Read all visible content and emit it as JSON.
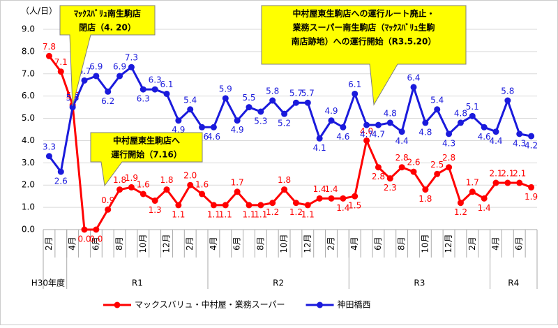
{
  "chart_data": {
    "type": "line",
    "y_unit_label": "（人/日）",
    "ylim": [
      0,
      9
    ],
    "yticks": [
      {
        "value": 0,
        "label": "0.0"
      },
      {
        "value": 1,
        "label": "1.0"
      },
      {
        "value": 2,
        "label": "2.0"
      },
      {
        "value": 3,
        "label": "3.0"
      },
      {
        "value": 4,
        "label": "4.0"
      },
      {
        "value": 5,
        "label": "5.0"
      },
      {
        "value": 6,
        "label": "6.0"
      },
      {
        "value": 7,
        "label": "7.0"
      },
      {
        "value": 8,
        "label": "8.0"
      },
      {
        "value": 9,
        "label": "9.0"
      }
    ],
    "grid": true,
    "legend": "bottom",
    "groups": [
      {
        "label": "H30年度",
        "categories": [
          "2月",
          null
        ]
      },
      {
        "label": "R1",
        "categories": [
          "4月",
          null,
          "6月",
          null,
          "8月",
          null,
          "10月",
          null,
          "12月",
          null,
          "2月",
          null
        ]
      },
      {
        "label": "R2",
        "categories": [
          "4月",
          null,
          "6月",
          null,
          "8月",
          null,
          "10月",
          null,
          "12月",
          null,
          "2月",
          null
        ]
      },
      {
        "label": "R3",
        "categories": [
          "4月",
          null,
          "6月",
          null,
          "8月",
          null,
          "10月",
          null,
          "12月",
          null,
          "2月",
          null
        ]
      },
      {
        "label": "R4",
        "categories": [
          "4月",
          null,
          "6月",
          null
        ]
      }
    ],
    "series": [
      {
        "name": "マックスバリュ・中村屋・業務スーパー",
        "color": "#ff0000",
        "values": [
          7.8,
          7.1,
          5.6,
          0,
          0,
          0.9,
          1.8,
          1.9,
          1.6,
          1.3,
          1.8,
          1.1,
          2,
          1.6,
          1.1,
          1.1,
          1.7,
          1.1,
          1.1,
          1.2,
          1.8,
          1.2,
          1.1,
          1.4,
          1.4,
          1.4,
          1.5,
          4,
          2.8,
          2.3,
          2.8,
          2.6,
          1.8,
          2.5,
          2.8,
          1.2,
          1.7,
          1.4,
          2.1,
          2.1,
          2.1,
          1.9
        ],
        "value_labels": [
          "7.8",
          "7.1",
          "5.6",
          "0.0",
          "0.0",
          "0.9",
          "1.8",
          "1.9",
          "1.6",
          "1.3",
          "1.8",
          "1.1",
          "2.0",
          "1.6",
          "1.1",
          "1.1",
          "1.7",
          "1.1",
          "1.1",
          "1.2",
          "1.8",
          "1.2",
          "1.1",
          "1.4",
          "1.4",
          "1.4",
          "1.5",
          "4.0",
          "2.8",
          "2.3",
          "2.8",
          "2.6",
          "1.8",
          "2.5",
          "2.8",
          "1.2",
          "1.7",
          "1.4",
          "2.1",
          "2.1",
          "2.1",
          "1.9"
        ]
      },
      {
        "name": "神田橋西",
        "color": "#1a1adc",
        "values": [
          3.3,
          2.6,
          5.5,
          6.7,
          6.9,
          6.2,
          6.9,
          7.3,
          6.3,
          6.3,
          6.1,
          4.9,
          5.4,
          4.6,
          4.6,
          5.9,
          4.9,
          5.5,
          5.3,
          5.8,
          5.2,
          5.7,
          5.7,
          4.1,
          4.9,
          4.6,
          6.1,
          4.7,
          4.7,
          4.8,
          4.4,
          6.4,
          4.8,
          5.4,
          4.3,
          4.8,
          5.1,
          4.6,
          4.4,
          5.8,
          4.3,
          4.2
        ]
      }
    ],
    "annotations": [
      {
        "lines": [
          "ﾏｯｸｽﾊﾞﾘｭ南生駒店",
          "閉店（4. 20）"
        ]
      },
      {
        "lines": [
          "中村屋東生駒店へ",
          "運行開始（7.16）"
        ]
      },
      {
        "lines": [
          "中村屋東生駒店への運行ルート廃止・",
          "業務スーパー南生駒店（ﾏｯｸｽﾊﾞﾘｭ生駒",
          "南店跡地）への運行開始（R3.5.20）"
        ]
      }
    ]
  }
}
